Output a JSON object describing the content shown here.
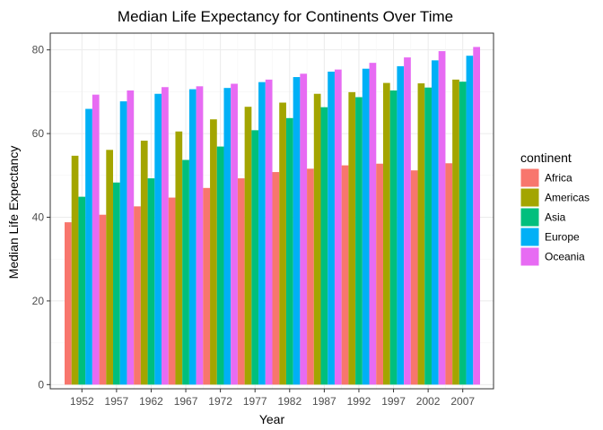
{
  "chart_data": {
    "type": "bar",
    "title": "Median Life Expectancy for Continents Over Time",
    "xlabel": "Year",
    "ylabel": "Median Life Expectancy",
    "ylim": [
      -1,
      84
    ],
    "yticks": [
      0,
      20,
      40,
      60,
      80
    ],
    "grid": true,
    "legend_position": "right",
    "legend_title": "continent",
    "categories": [
      "1952",
      "1957",
      "1962",
      "1967",
      "1972",
      "1977",
      "1982",
      "1987",
      "1992",
      "1997",
      "2002",
      "2007"
    ],
    "series": [
      {
        "name": "Africa",
        "color": "#F8766D",
        "values": [
          38.8,
          40.6,
          42.6,
          44.7,
          47.0,
          49.3,
          50.8,
          51.6,
          52.4,
          52.8,
          51.2,
          52.9
        ]
      },
      {
        "name": "Americas",
        "color": "#A3A500",
        "values": [
          54.7,
          56.1,
          58.3,
          60.5,
          63.4,
          66.4,
          67.4,
          69.5,
          69.9,
          72.1,
          72.0,
          72.9
        ]
      },
      {
        "name": "Asia",
        "color": "#00BF7D",
        "values": [
          44.9,
          48.3,
          49.3,
          53.7,
          56.9,
          60.8,
          63.7,
          66.3,
          68.7,
          70.3,
          71.0,
          72.4
        ]
      },
      {
        "name": "Europe",
        "color": "#00B0F6",
        "values": [
          65.9,
          67.7,
          69.5,
          70.6,
          70.9,
          72.3,
          73.5,
          74.8,
          75.5,
          76.1,
          77.5,
          78.6
        ]
      },
      {
        "name": "Oceania",
        "color": "#E76BF3",
        "values": [
          69.3,
          70.3,
          71.1,
          71.3,
          71.9,
          72.9,
          74.3,
          75.3,
          76.9,
          78.2,
          79.7,
          80.7
        ]
      }
    ]
  }
}
